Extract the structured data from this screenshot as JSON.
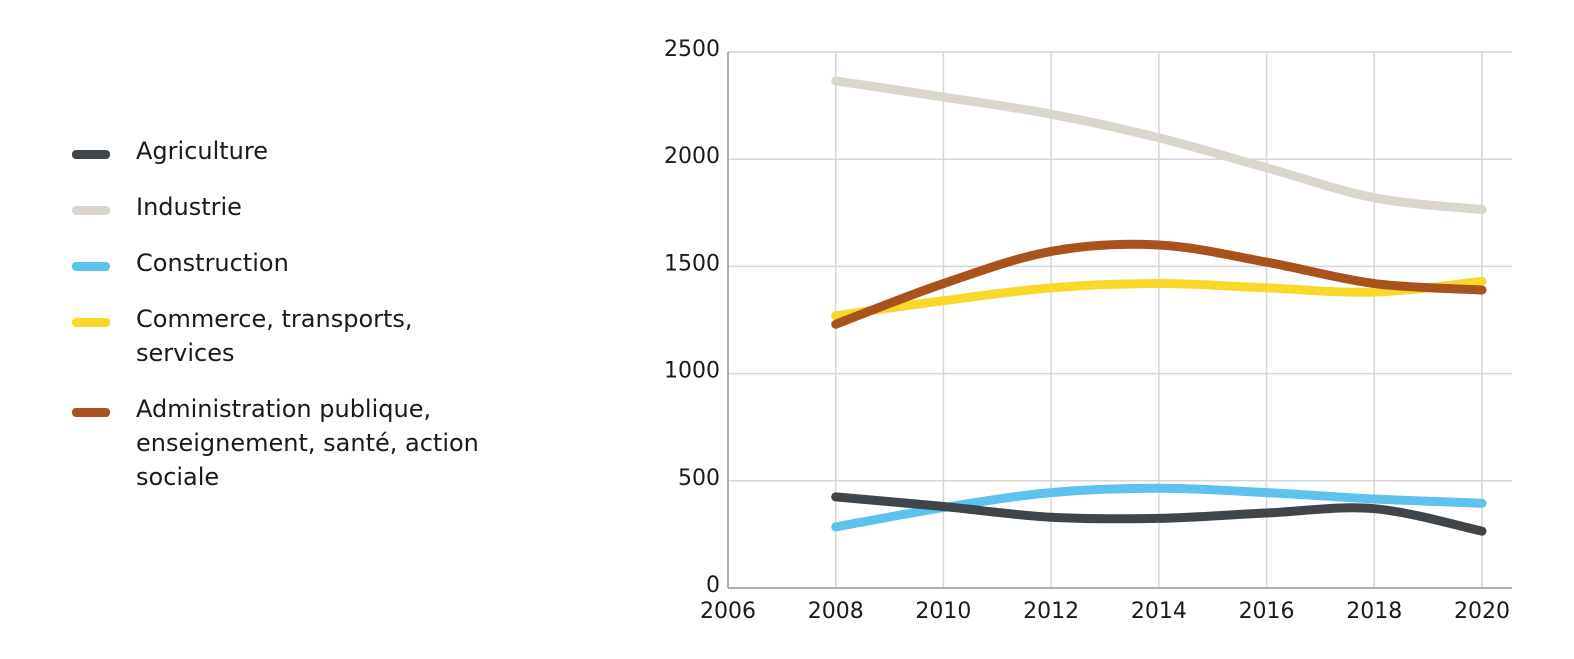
{
  "colors": {
    "agriculture": "#3f4548",
    "industrie": "#dbd6cc",
    "construction": "#5cc2ee",
    "commerce": "#f8d92a",
    "administration": "#a9521b",
    "grid": "#d6d6d6",
    "axis": "#9a9a9a"
  },
  "chart_data": {
    "type": "line",
    "x": [
      2008,
      2010,
      2012,
      2014,
      2016,
      2018,
      2020
    ],
    "xlim": [
      2006,
      2020
    ],
    "ylim": [
      0,
      2500
    ],
    "x_ticks": [
      "2006",
      "2008",
      "2010",
      "2012",
      "2014",
      "2016",
      "2018",
      "2020"
    ],
    "y_ticks": [
      "0",
      "500",
      "1000",
      "1500",
      "2000",
      "2500"
    ],
    "grid": true,
    "legend_position": "left",
    "series": [
      {
        "name": "Agriculture",
        "color_key": "agriculture",
        "values": [
          425,
          380,
          330,
          325,
          350,
          370,
          265
        ]
      },
      {
        "name": "Industrie",
        "color_key": "industrie",
        "values": [
          2365,
          2290,
          2210,
          2100,
          1960,
          1820,
          1765
        ]
      },
      {
        "name": "Construction",
        "color_key": "construction",
        "values": [
          285,
          375,
          445,
          465,
          445,
          415,
          395
        ]
      },
      {
        "name": "Commerce, transports,\nservices",
        "color_key": "commerce",
        "values": [
          1270,
          1340,
          1400,
          1420,
          1400,
          1380,
          1430
        ]
      },
      {
        "name": "Administration publique,\nenseignement, santé, action\nsociale",
        "color_key": "administration",
        "values": [
          1230,
          1420,
          1570,
          1600,
          1520,
          1420,
          1390
        ]
      }
    ]
  }
}
